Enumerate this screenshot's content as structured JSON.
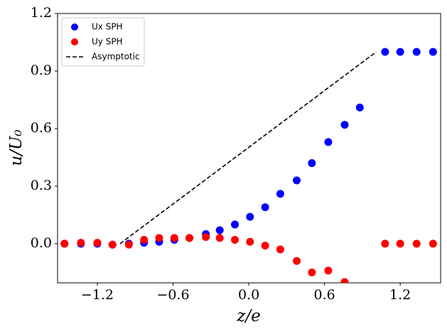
{
  "chart_data": {
    "type": "scatter",
    "xlabel": "z/e",
    "ylabel": "u/U₀",
    "xlim": [
      -1.515,
      1.52
    ],
    "ylim": [
      -0.204,
      1.2
    ],
    "xticks": [
      {
        "value": -1.2,
        "label": "−1.2"
      },
      {
        "value": -0.6,
        "label": "−0.6"
      },
      {
        "value": 0,
        "label": "0.0"
      },
      0.6,
      1.2
    ],
    "yticks": [
      {
        "value": 0,
        "label": "0.0"
      },
      0.3,
      0.6,
      0.9,
      1.2
    ],
    "legend": "upper left",
    "x": [
      -1.46,
      -1.33,
      -1.2,
      -1.08,
      -0.95,
      -0.83,
      -0.71,
      -0.59,
      -0.47,
      -0.34,
      -0.23,
      -0.11,
      0.01,
      0.13,
      0.25,
      0.38,
      0.5,
      0.63,
      0.76,
      0.88,
      1.08,
      1.2,
      1.33,
      1.46
    ],
    "series": [
      {
        "name": "Ux SPH",
        "color": "#0000ff",
        "kind": "scatter",
        "values": [
          0,
          0,
          0,
          -0.005,
          0,
          0.005,
          0.01,
          0.02,
          0.03,
          0.05,
          0.07,
          0.1,
          0.14,
          0.19,
          0.26,
          0.33,
          0.42,
          0.53,
          0.62,
          0.71,
          1.0,
          1.0,
          1.0,
          1.0
        ]
      },
      {
        "name": "Uy SPH",
        "color": "#ff0000",
        "kind": "scatter",
        "values": [
          0,
          0.005,
          0.005,
          -0.005,
          -0.005,
          0.02,
          0.03,
          0.03,
          0.03,
          0.035,
          0.03,
          0.02,
          0.01,
          -0.01,
          -0.03,
          -0.09,
          -0.15,
          -0.14,
          -0.2,
          null,
          0,
          0,
          0,
          0
        ]
      },
      {
        "name": "Asymptotic",
        "color": "#000000",
        "kind": "dashed-line",
        "x": [
          -1.02,
          1.01
        ],
        "values": [
          0,
          1.0
        ]
      }
    ]
  }
}
